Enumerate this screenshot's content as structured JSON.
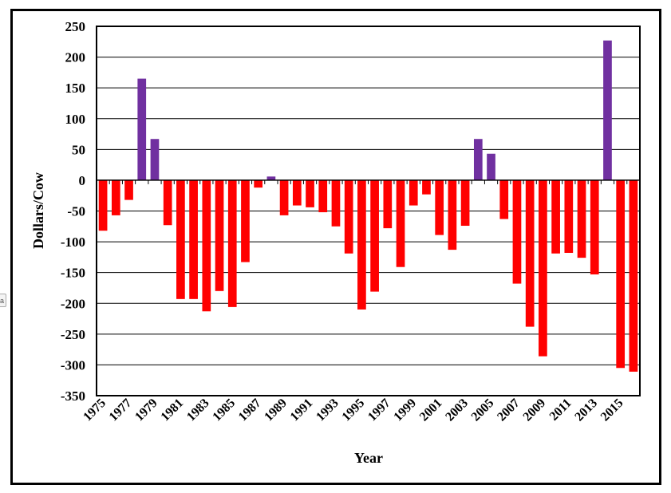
{
  "side_button_label": "a",
  "chart_data": {
    "type": "bar",
    "title": "",
    "xlabel": "Year",
    "ylabel": "Dollars/Cow",
    "ylim": [
      -350,
      250
    ],
    "yticks": [
      250,
      200,
      150,
      100,
      50,
      0,
      -50,
      -100,
      -150,
      -200,
      -250,
      -300,
      -350
    ],
    "grid": true,
    "legend": "none",
    "colors": {
      "positive": "#7030A0",
      "negative": "#FF0000"
    },
    "categories": [
      "1975",
      "1976",
      "1977",
      "1978",
      "1979",
      "1980",
      "1981",
      "1982",
      "1983",
      "1984",
      "1985",
      "1986",
      "1987",
      "1988",
      "1989",
      "1990",
      "1991",
      "1992",
      "1993",
      "1994",
      "1995",
      "1996",
      "1997",
      "1998",
      "1999",
      "2000",
      "2001",
      "2002",
      "2003",
      "2004",
      "2005",
      "2006",
      "2007",
      "2008",
      "2009",
      "2010",
      "2011",
      "2012",
      "2013",
      "2014",
      "2015",
      "2016"
    ],
    "xtick_labels": [
      "1975",
      "1977",
      "1979",
      "1981",
      "1983",
      "1985",
      "1987",
      "1989",
      "1991",
      "1993",
      "1995",
      "1997",
      "1999",
      "2001",
      "2003",
      "2005",
      "2007",
      "2009",
      "2011",
      "2013",
      "2015"
    ],
    "values": [
      -82,
      -57,
      -32,
      165,
      67,
      -73,
      -193,
      -193,
      -213,
      -180,
      -206,
      -133,
      -12,
      6,
      -57,
      -41,
      -44,
      -52,
      -75,
      -119,
      -210,
      -181,
      -78,
      -141,
      -41,
      -23,
      -89,
      -113,
      -74,
      67,
      43,
      -63,
      -168,
      -238,
      -286,
      -119,
      -118,
      -126,
      -153,
      227,
      -305,
      -311
    ]
  }
}
